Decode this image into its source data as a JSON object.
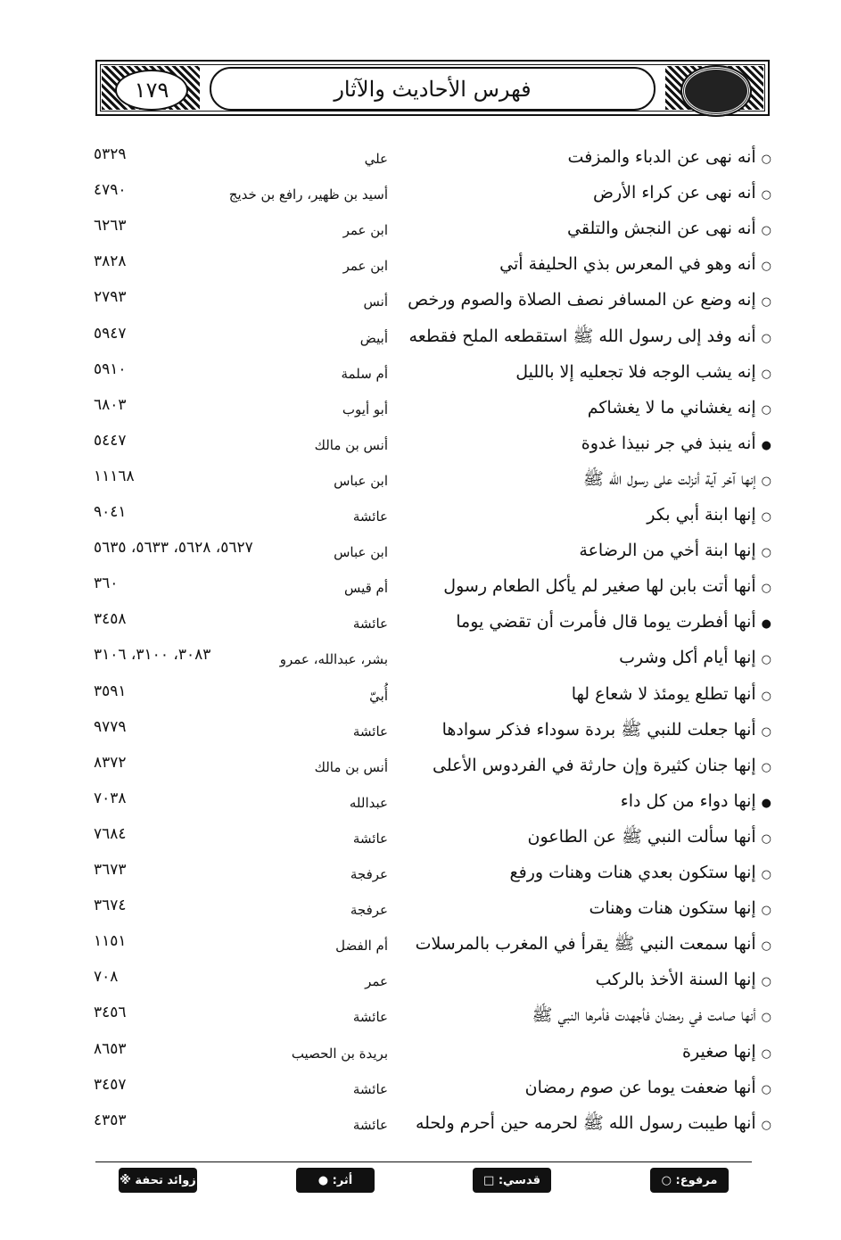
{
  "header": {
    "page_number": "١٧٩",
    "title": "فهرس الأحاديث والآثار"
  },
  "rows": [
    {
      "mark": "○",
      "text": "أنه نهى عن الدباء والمزفت",
      "narrator": "علي",
      "refs": "٥٣٢٩"
    },
    {
      "mark": "○",
      "text": "أنه نهى عن كراء الأرض",
      "narrator": "أسيد بن ظهير، رافع بن خديج",
      "refs": "٤٧٩٠"
    },
    {
      "mark": "○",
      "text": "أنه نهى عن النجش والتلقي",
      "narrator": "ابن عمر",
      "refs": "٦٢٦٣"
    },
    {
      "mark": "○",
      "text": "أنه وهو في المعرس بذي الحليفة أتي",
      "narrator": "ابن عمر",
      "refs": "٣٨٢٨"
    },
    {
      "mark": "○",
      "text": "إنه وضع عن المسافر نصف الصلاة والصوم ورخص",
      "narrator": "أنس",
      "refs": "٢٧٩٣"
    },
    {
      "mark": "○",
      "text": "أنه وفد إلى رسول الله ﷺ استقطعه الملح فقطعه",
      "narrator": "أبيض",
      "refs": "٥٩٤٧"
    },
    {
      "mark": "○",
      "text": "إنه يشب الوجه فلا تجعليه إلا بالليل",
      "narrator": "أم سلمة",
      "refs": "٥٩١٠"
    },
    {
      "mark": "○",
      "text": "إنه يغشاني ما لا يغشاكم",
      "narrator": "أبو أيوب",
      "refs": "٦٨٠٣"
    },
    {
      "mark": "●",
      "text": "أنه ينبذ في جر نبيذا غدوة",
      "narrator": "أنس بن مالك",
      "refs": "٥٤٤٧"
    },
    {
      "mark": "○",
      "text": "إنها آخر آية أنزلت على رسول الله ﷺ",
      "narrator": "ابن عباس",
      "refs": "١١١٦٨"
    },
    {
      "mark": "○",
      "text": "إنها ابنة أبي بكر",
      "narrator": "عائشة",
      "refs": "٩٠٤١"
    },
    {
      "mark": "○",
      "text": "إنها ابنة أخي من الرضاعة",
      "narrator": "ابن عباس",
      "refs": "٥٦٢٧، ٥٦٢٨، ٥٦٣٣، ٥٦٣٥"
    },
    {
      "mark": "○",
      "text": "أنها أتت بابن لها صغير لم يأكل الطعام رسول",
      "narrator": "أم قيس",
      "refs": "٣٦٠"
    },
    {
      "mark": "●",
      "text": "أنها أفطرت يوما قال فأمرت أن تقضي يوما",
      "narrator": "عائشة",
      "refs": "٣٤٥٨"
    },
    {
      "mark": "○",
      "text": "إنها أيام أكل وشرب",
      "narrator": "بشر، عبدالله، عمرو",
      "refs": "٣٠٨٣، ٣١٠٠، ٣١٠٦"
    },
    {
      "mark": "○",
      "text": "أنها تطلع يومئذ لا شعاع لها",
      "narrator": "أُبيّ",
      "refs": "٣٥٩١"
    },
    {
      "mark": "○",
      "text": "أنها جعلت للنبي ﷺ بردة سوداء فذكر سوادها",
      "narrator": "عائشة",
      "refs": "٩٧٧٩"
    },
    {
      "mark": "○",
      "text": "إنها جنان كثيرة وإن حارثة في الفردوس الأعلى",
      "narrator": "أنس بن مالك",
      "refs": "٨٣٧٢"
    },
    {
      "mark": "●",
      "text": "إنها دواء من كل داء",
      "narrator": "عبدالله",
      "refs": "٧٠٣٨"
    },
    {
      "mark": "○",
      "text": "أنها سألت النبي ﷺ عن الطاعون",
      "narrator": "عائشة",
      "refs": "٧٦٨٤"
    },
    {
      "mark": "○",
      "text": "إنها ستكون بعدي هنات وهنات ورفع",
      "narrator": "عرفجة",
      "refs": "٣٦٧٣"
    },
    {
      "mark": "○",
      "text": "إنها ستكون هنات وهنات",
      "narrator": "عرفجة",
      "refs": "٣٦٧٤"
    },
    {
      "mark": "○",
      "text": "أنها سمعت النبي ﷺ يقرأ في المغرب بالمرسلات",
      "narrator": "أم الفضل",
      "refs": "١١٥١"
    },
    {
      "mark": "○",
      "text": "إنها السنة الأخذ بالركب",
      "narrator": "عمر",
      "refs": "٧٠٨"
    },
    {
      "mark": "○",
      "text": "أنها صامت في رمضان فأجهدت فأمرها النبي ﷺ",
      "narrator": "عائشة",
      "refs": "٣٤٥٦"
    },
    {
      "mark": "○",
      "text": "إنها صغيرة",
      "narrator": "بريدة بن الحصيب",
      "refs": "٨٦٥٣"
    },
    {
      "mark": "○",
      "text": "أنها ضعفت يوما عن صوم رمضان",
      "narrator": "عائشة",
      "refs": "٣٤٥٧"
    },
    {
      "mark": "○",
      "text": "أنها طيبت رسول الله ﷺ لحرمه حين أحرم ولحله",
      "narrator": "عائشة",
      "refs": "٤٣٥٣"
    }
  ],
  "legend": {
    "marfu": "مرفوع: ○",
    "qudsi": "قدسي: □",
    "athar": "أثر: ●",
    "zawaid": "زوائد تحفة ※"
  }
}
